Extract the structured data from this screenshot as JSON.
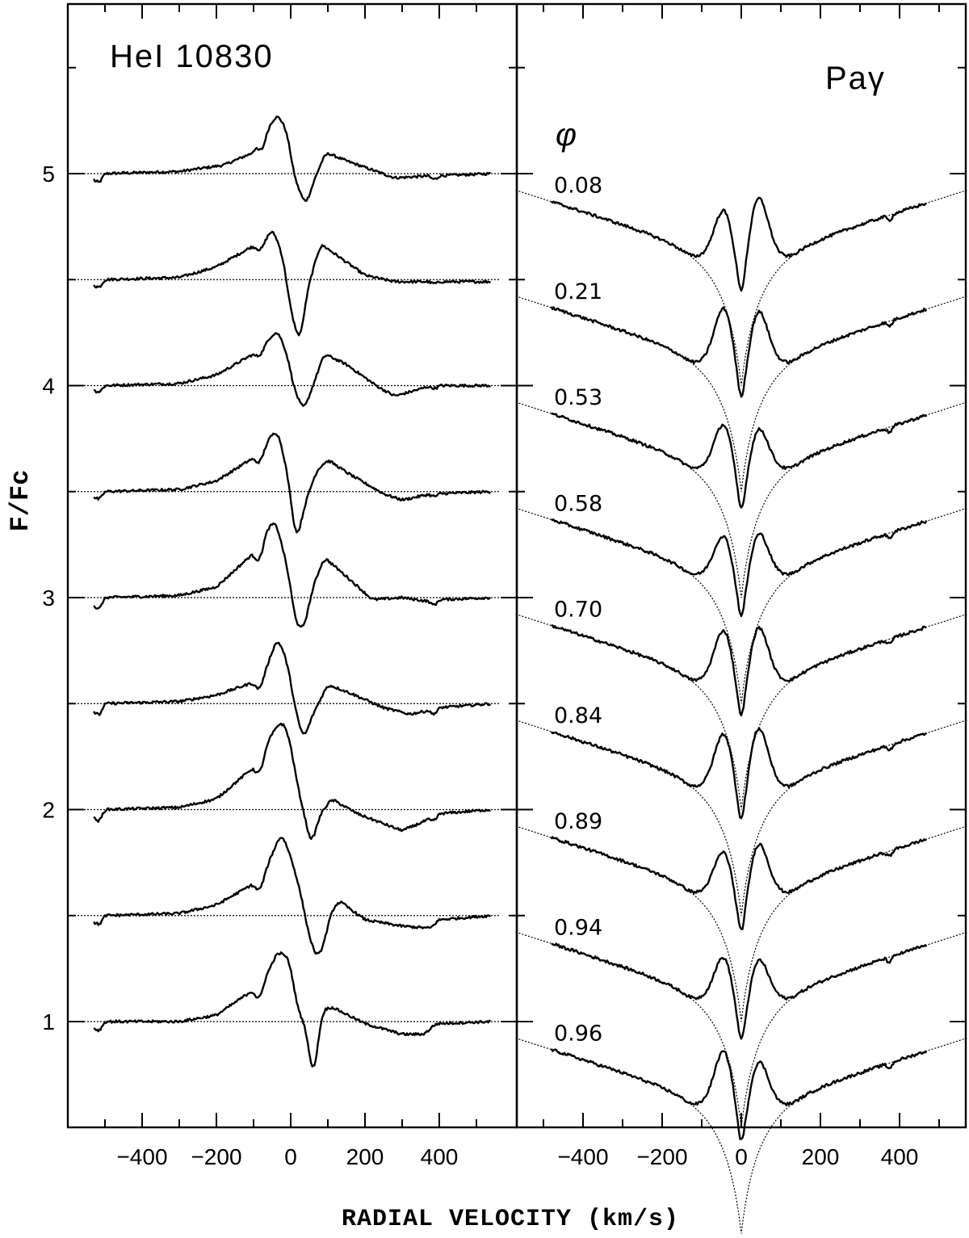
{
  "chart_data": [
    {
      "type": "line",
      "panel": "left",
      "title": "HeI 10830",
      "xlabel": "RADIAL VELOCITY (km/s)",
      "ylabel": "F/Fc",
      "xlim": [
        -570,
        570
      ],
      "ylim": [
        0.52,
        5.72
      ],
      "xticks": [
        -400,
        -200,
        0,
        200,
        400
      ],
      "xtick_labels": [
        "−400",
        "−200",
        "0",
        "200",
        "400"
      ],
      "yticks": [
        1,
        2,
        3,
        4,
        5
      ],
      "ytick_labels": [
        "1",
        "2",
        "3",
        "4",
        "5"
      ],
      "reference_lines": "dotted continuum at each spectrum offset",
      "offsets": [
        5.0,
        4.5,
        4.0,
        3.5,
        3.0,
        2.5,
        2.0,
        1.5,
        1.0
      ],
      "profile_keypoints": [
        {
          "offset": 5.0,
          "x": [
            -530,
            -518,
            -505,
            -300,
            -180,
            -100,
            -90,
            -80,
            -60,
            -35,
            -10,
            10,
            40,
            70,
            95,
            150,
            280,
            380,
            385,
            395,
            540
          ],
          "y": [
            5.0,
            4.93,
            5.0,
            5.01,
            5.04,
            5.1,
            5.14,
            5.08,
            5.22,
            5.28,
            5.2,
            4.98,
            4.85,
            5.0,
            5.1,
            5.06,
            4.98,
            4.99,
            4.95,
            4.99,
            5.0
          ]
        },
        {
          "offset": 4.5,
          "x": [
            -530,
            -518,
            -505,
            -300,
            -200,
            -100,
            -80,
            -60,
            -45,
            -20,
            0,
            25,
            45,
            80,
            120,
            200,
            280,
            380,
            385,
            395,
            540
          ],
          "y": [
            4.5,
            4.44,
            4.5,
            4.51,
            4.56,
            4.66,
            4.63,
            4.72,
            4.73,
            4.6,
            4.35,
            4.2,
            4.45,
            4.67,
            4.62,
            4.52,
            4.49,
            4.49,
            4.47,
            4.49,
            4.49
          ]
        },
        {
          "offset": 4.0,
          "x": [
            -530,
            -518,
            -505,
            -300,
            -200,
            -100,
            -85,
            -60,
            -35,
            -10,
            10,
            35,
            60,
            90,
            150,
            230,
            280,
            380,
            385,
            395,
            540
          ],
          "y": [
            4.0,
            3.95,
            4.0,
            4.01,
            4.05,
            4.15,
            4.13,
            4.22,
            4.26,
            4.15,
            3.98,
            3.88,
            4.0,
            4.15,
            4.1,
            4.0,
            3.95,
            4.0,
            3.97,
            4.0,
            4.0
          ]
        },
        {
          "offset": 3.5,
          "x": [
            -530,
            -518,
            -505,
            -300,
            -200,
            -100,
            -85,
            -60,
            -35,
            -10,
            15,
            40,
            70,
            100,
            160,
            250,
            300,
            380,
            385,
            395,
            540
          ],
          "y": [
            3.5,
            3.44,
            3.5,
            3.51,
            3.55,
            3.66,
            3.62,
            3.75,
            3.79,
            3.6,
            3.26,
            3.45,
            3.6,
            3.65,
            3.58,
            3.49,
            3.46,
            3.49,
            3.46,
            3.49,
            3.5
          ]
        },
        {
          "offset": 3.0,
          "x": [
            -530,
            -518,
            -505,
            -300,
            -200,
            -100,
            -85,
            -65,
            -40,
            -10,
            15,
            35,
            60,
            90,
            150,
            220,
            300,
            380,
            385,
            395,
            540
          ],
          "y": [
            3.0,
            2.91,
            3.0,
            3.01,
            3.05,
            3.21,
            3.15,
            3.32,
            3.36,
            3.15,
            2.87,
            2.85,
            3.05,
            3.19,
            3.1,
            2.99,
            3.0,
            2.98,
            2.94,
            2.99,
            3.0
          ]
        },
        {
          "offset": 2.5,
          "x": [
            -530,
            -518,
            -505,
            -300,
            -200,
            -100,
            -85,
            -60,
            -35,
            -10,
            15,
            35,
            60,
            100,
            160,
            250,
            320,
            380,
            385,
            395,
            540
          ],
          "y": [
            2.5,
            2.41,
            2.5,
            2.51,
            2.54,
            2.6,
            2.55,
            2.7,
            2.81,
            2.7,
            2.45,
            2.33,
            2.45,
            2.59,
            2.55,
            2.48,
            2.45,
            2.47,
            2.42,
            2.48,
            2.5
          ]
        },
        {
          "offset": 2.0,
          "x": [
            -530,
            -518,
            -505,
            -300,
            -200,
            -100,
            -85,
            -60,
            -25,
            -5,
            20,
            40,
            55,
            80,
            110,
            180,
            300,
            380,
            385,
            395,
            540
          ],
          "y": [
            2.0,
            1.91,
            2.0,
            2.01,
            2.05,
            2.2,
            2.15,
            2.33,
            2.42,
            2.35,
            2.1,
            1.95,
            1.83,
            1.98,
            2.05,
            1.98,
            1.9,
            1.96,
            1.92,
            1.98,
            2.0
          ]
        },
        {
          "offset": 1.5,
          "x": [
            -530,
            -518,
            -505,
            -300,
            -200,
            -100,
            -85,
            -60,
            -25,
            0,
            25,
            50,
            70,
            85,
            110,
            130,
            200,
            300,
            380,
            395,
            540
          ],
          "y": [
            1.5,
            1.43,
            1.5,
            1.51,
            1.55,
            1.65,
            1.6,
            1.75,
            1.89,
            1.78,
            1.62,
            1.4,
            1.3,
            1.34,
            1.52,
            1.57,
            1.48,
            1.45,
            1.44,
            1.48,
            1.5
          ]
        },
        {
          "offset": 1.0,
          "x": [
            -530,
            -518,
            -505,
            -300,
            -200,
            -100,
            -85,
            -70,
            -35,
            -5,
            20,
            40,
            60,
            70,
            85,
            110,
            200,
            300,
            360,
            390,
            540
          ],
          "y": [
            1.0,
            0.93,
            1.0,
            1.0,
            1.03,
            1.15,
            1.08,
            1.2,
            1.33,
            1.3,
            1.05,
            0.98,
            0.72,
            0.85,
            1.05,
            1.07,
            0.99,
            0.94,
            0.94,
            0.99,
            1.0
          ]
        }
      ]
    },
    {
      "type": "line",
      "panel": "right",
      "title": "Paγ",
      "phase_symbol": "φ",
      "xlim": [
        -570,
        570
      ],
      "xticks": [
        -400,
        -200,
        0,
        200,
        400
      ],
      "xtick_labels": [
        "−400",
        "−200",
        "0",
        "200",
        "400"
      ],
      "reference_lines": "dotted photospheric absorption profile per spectrum",
      "phases": [
        {
          "label": "0.08",
          "offset": 4.88
        },
        {
          "label": "0.21",
          "offset": 4.38
        },
        {
          "label": "0.53",
          "offset": 3.88
        },
        {
          "label": "0.58",
          "offset": 3.38
        },
        {
          "label": "0.70",
          "offset": 2.88
        },
        {
          "label": "0.84",
          "offset": 2.38
        },
        {
          "label": "0.89",
          "offset": 1.88
        },
        {
          "label": "0.94",
          "offset": 1.38
        },
        {
          "label": "0.96",
          "offset": 0.88
        }
      ]
    }
  ]
}
